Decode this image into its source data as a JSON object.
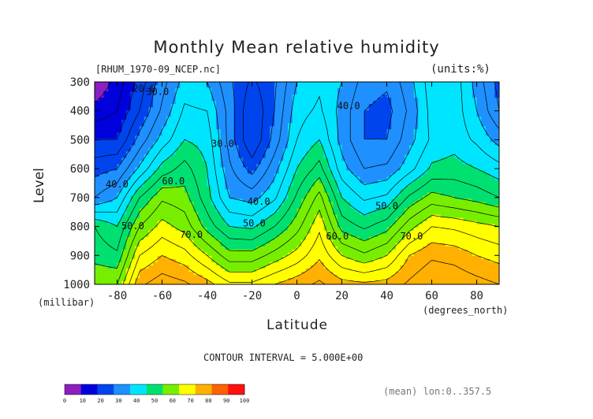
{
  "chart_data": {
    "type": "heatmap",
    "subtype": "filled-contour",
    "title": "Monthly Mean relative humidity",
    "file_label": "[RHUM_1970-09_NCEP.nc]",
    "units_label": "(units:%)",
    "xlabel": "Latitude",
    "x_unit_label": "(degrees_north)",
    "ylabel": "Level",
    "y_unit_label": "(millibar)",
    "xlim": [
      -90,
      90
    ],
    "ylim": [
      1000,
      300
    ],
    "x_ticks": [
      -80,
      -60,
      -40,
      -20,
      0,
      20,
      40,
      60,
      80
    ],
    "y_ticks": [
      300,
      400,
      500,
      600,
      700,
      800,
      900,
      1000
    ],
    "contour_interval_text": "CONTOUR INTERVAL = 5.000E+00",
    "averaging_note": "(mean) lon:0..357.5",
    "colorbar": {
      "bounds": [
        0,
        10,
        20,
        30,
        40,
        50,
        60,
        70,
        80,
        90,
        100
      ],
      "colors": [
        "#8b1fbf",
        "#0000dd",
        "#0044ee",
        "#1e90ff",
        "#00e5ff",
        "#00e070",
        "#77ee00",
        "#ffff00",
        "#ffb000",
        "#ff6000",
        "#ff1010"
      ]
    },
    "contour_labels": [
      {
        "lat": -68,
        "lev": 325,
        "text": "20.0"
      },
      {
        "lat": -62,
        "lev": 335,
        "text": "30.0"
      },
      {
        "lat": -33,
        "lev": 515,
        "text": "30.0"
      },
      {
        "lat": -80,
        "lev": 655,
        "text": "40.0"
      },
      {
        "lat": -17,
        "lev": 715,
        "text": "40.0"
      },
      {
        "lat": 23,
        "lev": 385,
        "text": "40.0"
      },
      {
        "lat": -73,
        "lev": 800,
        "text": "50.0"
      },
      {
        "lat": -19,
        "lev": 790,
        "text": "50.0"
      },
      {
        "lat": 40,
        "lev": 730,
        "text": "50.0"
      },
      {
        "lat": -55,
        "lev": 645,
        "text": "60.0"
      },
      {
        "lat": 18,
        "lev": 835,
        "text": "60.0"
      },
      {
        "lat": -47,
        "lev": 830,
        "text": "70.0"
      },
      {
        "lat": 51,
        "lev": 835,
        "text": "70.0"
      }
    ],
    "grid_lat": [
      -90,
      -80,
      -70,
      -60,
      -50,
      -40,
      -30,
      -20,
      -10,
      0,
      10,
      20,
      30,
      40,
      50,
      60,
      70,
      80,
      90
    ],
    "grid_lev": [
      300,
      400,
      500,
      600,
      700,
      800,
      900,
      1000
    ],
    "values": [
      [
        5,
        12,
        22,
        33,
        42,
        40,
        31,
        24,
        29,
        40,
        44,
        40,
        33,
        31,
        38,
        48,
        48,
        38,
        28
      ],
      [
        12,
        15,
        25,
        36,
        46,
        45,
        33,
        20,
        30,
        43,
        46,
        38,
        30,
        28,
        36,
        47,
        48,
        40,
        30
      ],
      [
        20,
        20,
        32,
        42,
        50,
        48,
        33,
        20,
        32,
        45,
        50,
        38,
        30,
        30,
        38,
        46,
        48,
        44,
        38
      ],
      [
        28,
        30,
        41,
        52,
        57,
        50,
        36,
        28,
        38,
        50,
        57,
        42,
        35,
        36,
        43,
        51,
        52,
        50,
        47
      ],
      [
        35,
        40,
        55,
        64,
        62,
        52,
        40,
        38,
        44,
        56,
        67,
        50,
        44,
        46,
        56,
        62,
        60,
        58,
        55
      ],
      [
        55,
        50,
        65,
        72,
        68,
        58,
        50,
        49,
        55,
        63,
        74,
        58,
        54,
        58,
        68,
        75,
        74,
        72,
        70
      ],
      [
        58,
        56,
        75,
        80,
        77,
        70,
        62,
        62,
        67,
        72,
        79,
        70,
        66,
        70,
        80,
        84,
        83,
        80,
        78
      ],
      [
        65,
        65,
        84,
        88,
        86,
        82,
        76,
        76,
        80,
        83,
        86,
        82,
        81,
        82,
        86,
        90,
        89,
        87,
        85
      ]
    ]
  }
}
